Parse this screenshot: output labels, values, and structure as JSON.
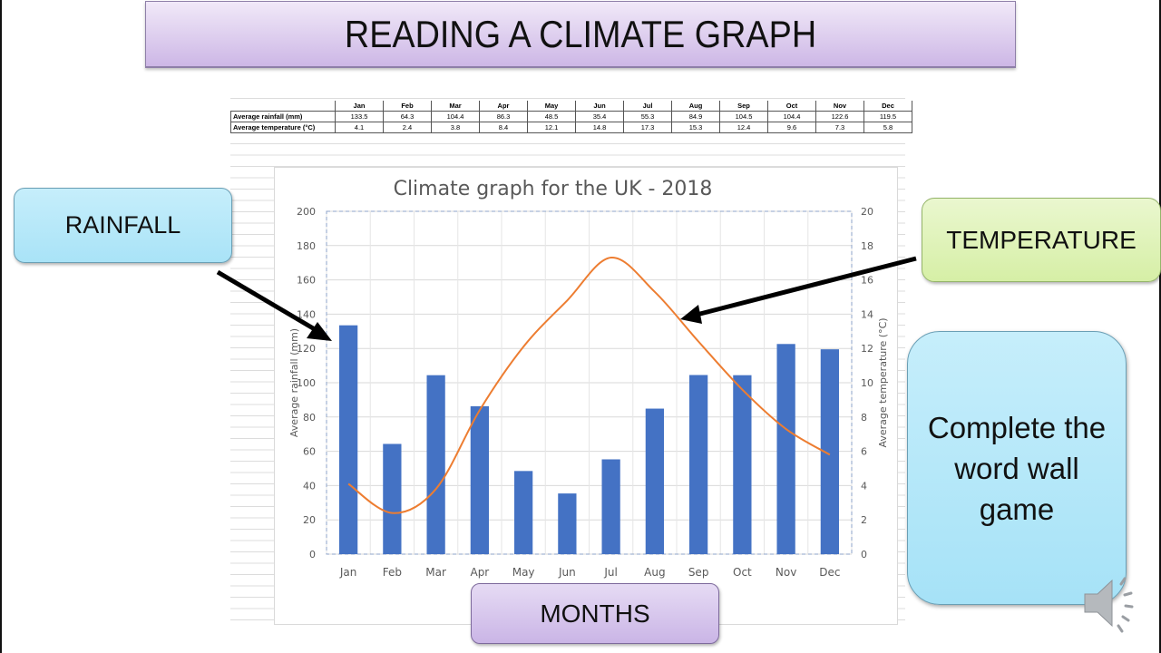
{
  "slide": {
    "title": "READING A CLIMATE GRAPH",
    "callouts": {
      "rainfall": "RAINFALL",
      "temperature": "TEMPERATURE",
      "months": "MONTHS",
      "game": "Complete the word wall game"
    },
    "audio_icon": "speaker-icon"
  },
  "table": {
    "columns": [
      "Jan",
      "Feb",
      "Mar",
      "Apr",
      "May",
      "Jun",
      "Jul",
      "Aug",
      "Sep",
      "Oct",
      "Nov",
      "Dec"
    ],
    "rows": [
      {
        "label": "Average rainfall (mm)",
        "values": [
          "133.5",
          "64.3",
          "104.4",
          "86.3",
          "48.5",
          "35.4",
          "55.3",
          "84.9",
          "104.5",
          "104.4",
          "122.6",
          "119.5"
        ]
      },
      {
        "label": "Average temperature (°C)",
        "values": [
          "4.1",
          "2.4",
          "3.8",
          "8.4",
          "12.1",
          "14.8",
          "17.3",
          "15.3",
          "12.4",
          "9.6",
          "7.3",
          "5.8"
        ]
      }
    ]
  },
  "colors": {
    "bar": "#4472c4",
    "line": "#ed7d31",
    "title_box": "#cdb7e6",
    "rainfall_box": "#a9e3f7",
    "temperature_box": "#d6efa6",
    "months_box": "#cab5e6",
    "game_box": "#a6e2f7"
  },
  "chart_data": {
    "type": "bar",
    "title": "Climate graph for the UK - 2018",
    "categories": [
      "Jan",
      "Feb",
      "Mar",
      "Apr",
      "May",
      "Jun",
      "Jul",
      "Aug",
      "Sep",
      "Oct",
      "Nov",
      "Dec"
    ],
    "series": [
      {
        "name": "Average rainfall (mm)",
        "type": "bar",
        "axis": "left",
        "values": [
          133.5,
          64.3,
          104.4,
          86.3,
          48.5,
          35.4,
          55.3,
          84.9,
          104.5,
          104.4,
          122.6,
          119.5
        ]
      },
      {
        "name": "Average temperature (°C)",
        "type": "line",
        "axis": "right",
        "values": [
          4.1,
          2.4,
          3.8,
          8.4,
          12.1,
          14.8,
          17.3,
          15.3,
          12.4,
          9.6,
          7.3,
          5.8
        ]
      }
    ],
    "xlabel": "",
    "ylabel": "Average rainfall (mm)",
    "y2label": "Average temperature (°C)",
    "ylim": [
      0,
      200
    ],
    "y2lim": [
      0,
      20
    ],
    "yticks": [
      0,
      20,
      40,
      60,
      80,
      100,
      120,
      140,
      160,
      180,
      200
    ],
    "y2ticks": [
      0,
      2,
      4,
      6,
      8,
      10,
      12,
      14,
      16,
      18,
      20
    ],
    "grid": true,
    "legend": "none"
  }
}
